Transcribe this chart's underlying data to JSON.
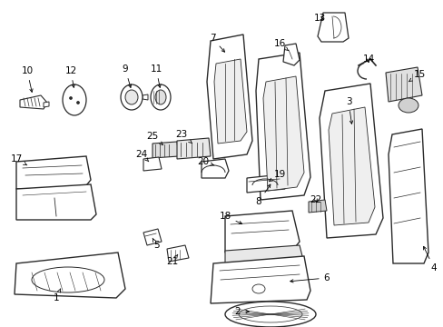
{
  "bg_color": "#ffffff",
  "line_color": "#2a2a2a",
  "label_fontsize": 7.5,
  "label_color": "#000000",
  "arrow_color": "#000000"
}
